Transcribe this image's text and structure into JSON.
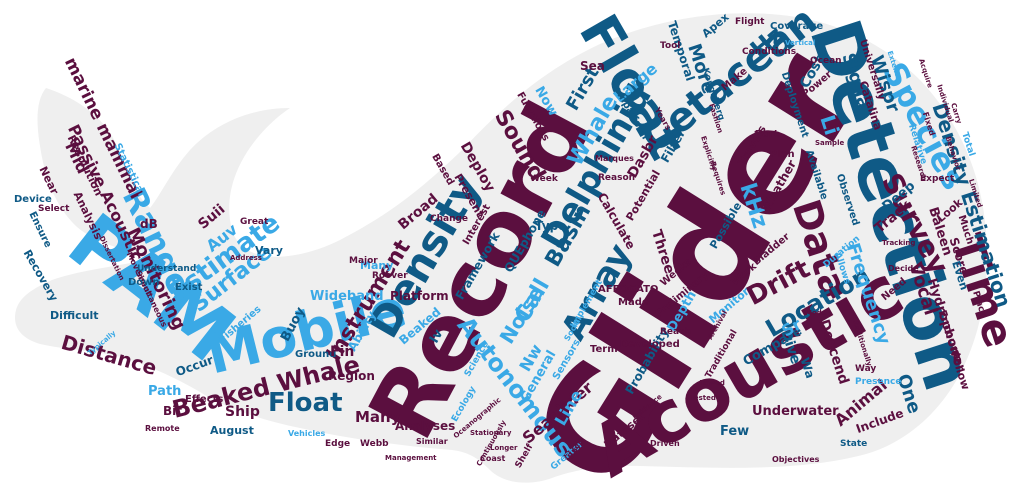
{
  "palette": {
    "plum": "#5b0f3f",
    "navy": "#0f5a86",
    "sky": "#3aa9e6",
    "pale": "#8fd3f5",
    "silhouette": "#efefef"
  },
  "words": [
    {
      "text": "Glider",
      "color": "plum"
    },
    {
      "text": "Record",
      "color": "plum"
    },
    {
      "text": "Acoustic",
      "color": "plum"
    },
    {
      "text": "Detection",
      "color": "navy"
    },
    {
      "text": "PAM",
      "color": "sky"
    },
    {
      "text": "Mobile",
      "color": "sky"
    },
    {
      "text": "Float",
      "color": "navy"
    },
    {
      "text": "Density",
      "color": "navy"
    },
    {
      "text": "Cetacean",
      "color": "navy"
    },
    {
      "text": "Time",
      "color": "plum"
    },
    {
      "text": "Species",
      "color": "sky"
    },
    {
      "text": "Delphinid",
      "color": "navy"
    },
    {
      "text": "Array",
      "color": "navy"
    },
    {
      "text": "Data",
      "color": "plum"
    },
    {
      "text": "Survey",
      "color": "plum"
    },
    {
      "text": "Range",
      "color": "sky"
    },
    {
      "text": "Estimate",
      "color": "sky"
    },
    {
      "text": "Beaked Whale",
      "color": "plum"
    },
    {
      "text": "Float",
      "color": "navy"
    },
    {
      "text": "Autonomous",
      "color": "sky"
    },
    {
      "text": "Location",
      "color": "navy"
    },
    {
      "text": "Density Estimation",
      "color": "navy"
    },
    {
      "text": "Frequency",
      "color": "sky"
    },
    {
      "text": "Drift",
      "color": "plum"
    },
    {
      "text": "Instrument",
      "color": "plum"
    },
    {
      "text": "Surface",
      "color": "sky"
    },
    {
      "text": "Monitoring",
      "color": "plum"
    },
    {
      "text": "Distance",
      "color": "plum"
    },
    {
      "text": "Noise",
      "color": "sky"
    },
    {
      "text": "Basin",
      "color": "navy"
    },
    {
      "text": "Call",
      "color": "sky"
    },
    {
      "text": "Sound",
      "color": "plum"
    },
    {
      "text": "Whale",
      "color": "sky"
    },
    {
      "text": "marine mammal",
      "color": "plum"
    },
    {
      "text": "Passive Acoustic",
      "color": "plum"
    },
    {
      "text": "Mid",
      "color": "plum"
    },
    {
      "text": "kHz",
      "color": "sky"
    },
    {
      "text": "Hz",
      "color": "navy"
    },
    {
      "text": "Large",
      "color": "sky"
    },
    {
      "text": "More",
      "color": "navy"
    },
    {
      "text": "First",
      "color": "navy"
    },
    {
      "text": "Signal",
      "color": "navy"
    },
    {
      "text": "Wispr",
      "color": "navy"
    },
    {
      "text": "Vocal",
      "color": "plum"
    },
    {
      "text": "Animal",
      "color": "plum"
    },
    {
      "text": "One",
      "color": "navy"
    },
    {
      "text": "Hydrophone",
      "color": "plum"
    },
    {
      "text": "Baleen",
      "color": "plum"
    },
    {
      "text": "Track",
      "color": "plum"
    },
    {
      "text": "Deep",
      "color": "navy"
    },
    {
      "text": "Compare",
      "color": "navy"
    },
    {
      "text": "Descend",
      "color": "plum"
    },
    {
      "text": "Dive",
      "color": "navy"
    },
    {
      "text": "Seaglider",
      "color": "plum"
    },
    {
      "text": "Line",
      "color": "sky"
    },
    {
      "text": "Underwater",
      "color": "plum"
    },
    {
      "text": "Many",
      "color": "plum"
    },
    {
      "text": "Ship",
      "color": "plum"
    },
    {
      "text": "August",
      "color": "navy"
    },
    {
      "text": "Auv",
      "color": "sky"
    },
    {
      "text": "Buoy",
      "color": "navy"
    },
    {
      "text": "Wideband",
      "color": "sky"
    },
    {
      "text": "Platform",
      "color": "plum"
    },
    {
      "text": "Deploy",
      "color": "plum"
    },
    {
      "text": "Dasbr",
      "color": "plum"
    },
    {
      "text": "Filter",
      "color": "navy"
    },
    {
      "text": "Cost",
      "color": "navy"
    },
    {
      "text": "Apex",
      "color": "navy"
    },
    {
      "text": "Temporal",
      "color": "navy"
    },
    {
      "text": "Kongsberg",
      "color": "navy"
    },
    {
      "text": "Three",
      "color": "plum"
    },
    {
      "text": "Probability",
      "color": "navy"
    },
    {
      "text": "Calculate",
      "color": "plum"
    },
    {
      "text": "Monitor",
      "color": "sky"
    },
    {
      "text": "Include",
      "color": "plum"
    },
    {
      "text": "Encounter",
      "color": "plum"
    },
    {
      "text": "Score",
      "color": "plum"
    },
    {
      "text": "Even",
      "color": "navy"
    },
    {
      "text": "Few",
      "color": "navy"
    },
    {
      "text": "Region",
      "color": "plum"
    },
    {
      "text": "Analyses",
      "color": "plum"
    },
    {
      "text": "General",
      "color": "sky"
    },
    {
      "text": "Depth",
      "color": "sky"
    },
    {
      "text": "Framework",
      "color": "navy"
    },
    {
      "text": "QUEphone",
      "color": "navy"
    },
    {
      "text": "AFFOGATO",
      "color": "plum"
    },
    {
      "text": "Catalina",
      "color": "plum"
    },
    {
      "text": "Power",
      "color": "plum"
    },
    {
      "text": "Coverage",
      "color": "navy"
    },
    {
      "text": "Available",
      "color": "navy"
    },
    {
      "text": "Observed",
      "color": "navy"
    },
    {
      "text": "Look",
      "color": "plum"
    },
    {
      "text": "Occur",
      "color": "navy"
    },
    {
      "text": "Difficult",
      "color": "navy"
    },
    {
      "text": "Fisheries",
      "color": "sky"
    },
    {
      "text": "Recovery",
      "color": "navy"
    },
    {
      "text": "Resolution",
      "color": "plum"
    },
    {
      "text": "Ensure",
      "color": "navy"
    },
    {
      "text": "Statistical",
      "color": "sky"
    },
    {
      "text": "Analysis",
      "color": "plum"
    },
    {
      "text": "Vary",
      "color": "navy"
    },
    {
      "text": "Path",
      "color": "sky"
    },
    {
      "text": "Effects",
      "color": "plum"
    },
    {
      "text": "Edge",
      "color": "plum"
    },
    {
      "text": "Webb",
      "color": "plum"
    },
    {
      "text": "Possible",
      "color": "navy"
    },
    {
      "text": "Weather",
      "color": "plum"
    },
    {
      "text": "Present",
      "color": "plum"
    },
    {
      "text": "Potential",
      "color": "plum"
    },
    {
      "text": "Comparison",
      "color": "navy"
    },
    {
      "text": "Deployment",
      "color": "navy"
    },
    {
      "text": "Functions",
      "color": "plum"
    },
    {
      "text": "Sea",
      "color": "plum"
    },
    {
      "text": "Now",
      "color": "sky"
    },
    {
      "text": "Type",
      "color": "navy"
    },
    {
      "text": "Part",
      "color": "plum"
    },
    {
      "text": "Make",
      "color": "plum"
    },
    {
      "text": "Made",
      "color": "plum"
    },
    {
      "text": "Dataset",
      "color": "plum"
    },
    {
      "text": "Term",
      "color": "plum"
    },
    {
      "text": "Developed",
      "color": "plum"
    },
    {
      "text": "Work",
      "color": "plum"
    },
    {
      "text": "Simultaneous",
      "color": "plum"
    },
    {
      "text": "Movement",
      "color": "plum"
    },
    {
      "text": "Down",
      "color": "navy"
    },
    {
      "text": "Exist",
      "color": "navy"
    },
    {
      "text": "Understand",
      "color": "navy"
    },
    {
      "text": "Ground",
      "color": "navy"
    },
    {
      "text": "Ability",
      "color": "sky"
    },
    {
      "text": "Near",
      "color": "plum"
    },
    {
      "text": "Device",
      "color": "navy"
    },
    {
      "text": "Select",
      "color": "plum"
    },
    {
      "text": "Follow",
      "color": "plum"
    },
    {
      "text": "State",
      "color": "navy"
    },
    {
      "text": "Weeks",
      "color": "plum"
    },
    {
      "text": "Preliminary",
      "color": "plum"
    },
    {
      "text": "Fin",
      "color": "plum"
    },
    {
      "text": "Many",
      "color": "sky"
    },
    {
      "text": "Traditional",
      "color": "plum"
    },
    {
      "text": "Travels",
      "color": "plum"
    },
    {
      "text": "Plan",
      "color": "plum"
    },
    {
      "text": "Bladder",
      "color": "plum"
    },
    {
      "text": "Need",
      "color": "plum"
    },
    {
      "text": "Universally",
      "color": "plum"
    },
    {
      "text": "Wa",
      "color": "navy"
    },
    {
      "text": "Sr",
      "color": "sky"
    },
    {
      "text": "Nw",
      "color": "sky"
    },
    {
      "text": "Iv",
      "color": "navy"
    },
    {
      "text": "Bit",
      "color": "plum"
    },
    {
      "text": "dB",
      "color": "plum"
    },
    {
      "text": "Suii",
      "color": "plum"
    },
    {
      "text": "Broad",
      "color": "plum"
    },
    {
      "text": "Beaked",
      "color": "sky"
    },
    {
      "text": "Based",
      "color": "plum"
    },
    {
      "text": "Sensors",
      "color": "sky"
    },
    {
      "text": "Implement",
      "color": "sky"
    },
    {
      "text": "Interest",
      "color": "plum"
    },
    {
      "text": "Greater",
      "color": "sky"
    },
    {
      "text": "Social",
      "color": "sky"
    },
    {
      "text": "Change",
      "color": "plum"
    },
    {
      "text": "Duration",
      "color": "sky"
    },
    {
      "text": "Allows",
      "color": "sky"
    },
    {
      "text": "Presence",
      "color": "sky"
    },
    {
      "text": "Objectives",
      "color": "plum"
    },
    {
      "text": "Reach",
      "color": "plum"
    },
    {
      "text": "Years",
      "color": "plum"
    },
    {
      "text": "Flight",
      "color": "plum"
    },
    {
      "text": "Conditions",
      "color": "plum"
    },
    {
      "text": "Ocean",
      "color": "plum"
    },
    {
      "text": "Tool",
      "color": "plum"
    },
    {
      "text": "Marques",
      "color": "plum"
    },
    {
      "text": "Reason",
      "color": "plum"
    },
    {
      "text": "Major",
      "color": "plum"
    },
    {
      "text": "Roover",
      "color": "plum"
    },
    {
      "text": "Week",
      "color": "plum"
    },
    {
      "text": "Li",
      "color": "sky"
    },
    {
      "text": "Total",
      "color": "sky"
    },
    {
      "text": "Expect",
      "color": "plum"
    },
    {
      "text": "Much",
      "color": "plum"
    },
    {
      "text": "Place",
      "color": "plum"
    },
    {
      "text": "Decide",
      "color": "plum"
    },
    {
      "text": "Relative",
      "color": "sky"
    },
    {
      "text": "Fixed",
      "color": "plum"
    },
    {
      "text": "Great",
      "color": "plum"
    },
    {
      "text": "Ecology",
      "color": "sky"
    },
    {
      "text": "Science",
      "color": "sky"
    },
    {
      "text": "Similar",
      "color": "plum"
    },
    {
      "text": "Management",
      "color": "plum"
    },
    {
      "text": "Vehicles",
      "color": "sky"
    },
    {
      "text": "Remote",
      "color": "plum"
    },
    {
      "text": "Way",
      "color": "plum"
    },
    {
      "text": "Shelf",
      "color": "plum"
    },
    {
      "text": "Back",
      "color": "plum"
    },
    {
      "text": "Driven",
      "color": "plum"
    },
    {
      "text": "Coast",
      "color": "plum"
    },
    {
      "text": "Continuously",
      "color": "plum"
    },
    {
      "text": "Longer",
      "color": "plum"
    },
    {
      "text": "Stationary",
      "color": "plum"
    },
    {
      "text": "Oceanographic",
      "color": "plum"
    },
    {
      "text": "Additionally",
      "color": "plum"
    },
    {
      "text": "Vertical",
      "color": "sky"
    },
    {
      "text": "Fashion",
      "color": "plum"
    },
    {
      "text": "Explicitly",
      "color": "plum"
    },
    {
      "text": "Dissertation",
      "color": "plum"
    },
    {
      "text": "Typically",
      "color": "sky"
    },
    {
      "text": "Towed",
      "color": "plum"
    },
    {
      "text": "Tested",
      "color": "plum"
    },
    {
      "text": "Evidence",
      "color": "plum"
    },
    {
      "text": "Requires",
      "color": "plum"
    },
    {
      "text": "Mode",
      "color": "plum"
    },
    {
      "text": "Sample",
      "color": "plum"
    },
    {
      "text": "Research",
      "color": "plum"
    },
    {
      "text": "Individual",
      "color": "plum"
    },
    {
      "text": "Archival",
      "color": "plum"
    },
    {
      "text": "Tracking",
      "color": "plum"
    },
    {
      "text": "Limited",
      "color": "plum"
    },
    {
      "text": "Address",
      "color": "plum"
    },
    {
      "text": "Behavior",
      "color": "plum"
    },
    {
      "text": "Extent",
      "color": "sky"
    },
    {
      "text": "Acquire",
      "color": "plum"
    },
    {
      "text": "Carry",
      "color": "plum"
    }
  ]
}
